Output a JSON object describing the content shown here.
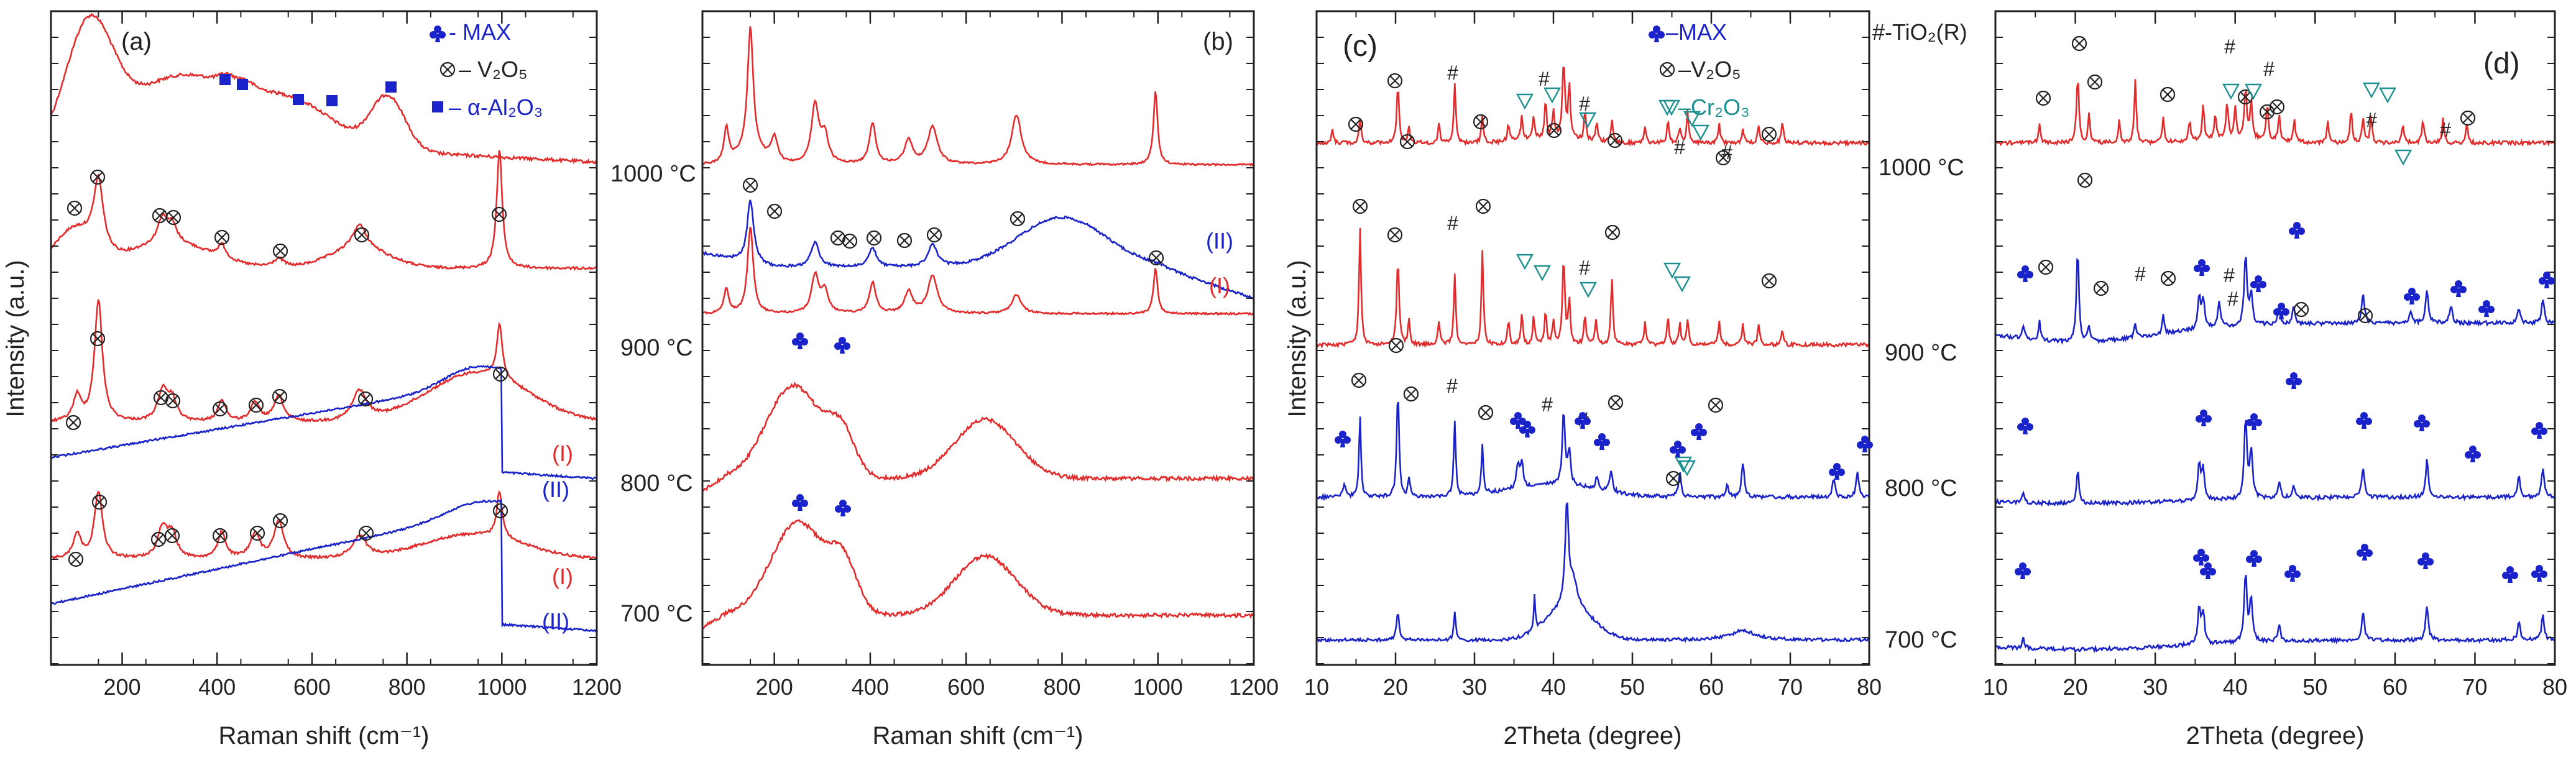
{
  "figure": {
    "y_axis_left": "Intensity (a.u.)",
    "y_axis_right": "Intensity (a.u.)",
    "colors": {
      "red": "#e32b2b",
      "blue": "#1a22c9",
      "teal": "#1e8f8f",
      "axis": "#222222"
    }
  },
  "temps": [
    "1000 °C",
    "900 °C",
    "800 °C",
    "700 °C"
  ],
  "roman": {
    "one": "(I)",
    "two": "(II)"
  },
  "chart_data": [
    {
      "panel": "(a)",
      "type": "line",
      "xlabel": "Raman shift (cm⁻¹)",
      "ylabel": "Intensity (a.u.)",
      "xlim": [
        50,
        1200
      ],
      "xticks": [
        "200",
        "400",
        "600",
        "800",
        "1000",
        "1200"
      ],
      "legend": [
        {
          "marker": "club",
          "text": "- MAX"
        },
        {
          "marker": "otimes",
          "text": "– V₂O₅"
        },
        {
          "marker": "square",
          "text": "– α-Al₂O₃"
        }
      ],
      "series": [
        {
          "name": "1000 °C",
          "color": "red"
        },
        {
          "name": "900 °C",
          "color": "red"
        },
        {
          "name": "800 °C (I)",
          "color": "red"
        },
        {
          "name": "800 °C (II)",
          "color": "blue"
        },
        {
          "name": "700 °C (I)",
          "color": "red"
        },
        {
          "name": "700 °C (II)",
          "color": "blue"
        }
      ]
    },
    {
      "panel": "(b)",
      "type": "line",
      "xlabel": "Raman shift (cm⁻¹)",
      "xlim": [
        50,
        1200
      ],
      "xticks": [
        "200",
        "400",
        "600",
        "800",
        "1000",
        "1200"
      ],
      "series": [
        {
          "name": "1000 °C",
          "color": "red"
        },
        {
          "name": "900 °C (II)",
          "color": "blue"
        },
        {
          "name": "900 °C (I)",
          "color": "red"
        },
        {
          "name": "800 °C",
          "color": "red"
        },
        {
          "name": "700 °C",
          "color": "red"
        }
      ]
    },
    {
      "panel": "(c)",
      "type": "line",
      "xlabel": "2Theta (degree)",
      "ylabel": "Intensity (a.u.)",
      "xlim": [
        10,
        80
      ],
      "xticks": [
        "10",
        "20",
        "30",
        "40",
        "50",
        "60",
        "70",
        "80"
      ],
      "legend": [
        {
          "marker": "club",
          "text": "–MAX"
        },
        {
          "marker": "hash",
          "text": "#-TiO₂(R)"
        },
        {
          "marker": "otimes",
          "text": "–V₂O₅"
        },
        {
          "marker": "tri",
          "text": "–Cr₂O₃"
        }
      ],
      "series": [
        {
          "name": "1000 °C",
          "color": "red"
        },
        {
          "name": "900 °C",
          "color": "red"
        },
        {
          "name": "800 °C",
          "color": "blue"
        },
        {
          "name": "700 °C",
          "color": "blue"
        }
      ]
    },
    {
      "panel": "(d)",
      "type": "line",
      "xlabel": "2Theta (degree)",
      "xlim": [
        10,
        80
      ],
      "xticks": [
        "10",
        "20",
        "30",
        "40",
        "50",
        "60",
        "70",
        "80"
      ],
      "series": [
        {
          "name": "1000 °C",
          "color": "red"
        },
        {
          "name": "900 °C",
          "color": "blue"
        },
        {
          "name": "800 °C",
          "color": "blue"
        },
        {
          "name": "700 °C",
          "color": "blue"
        }
      ]
    }
  ]
}
